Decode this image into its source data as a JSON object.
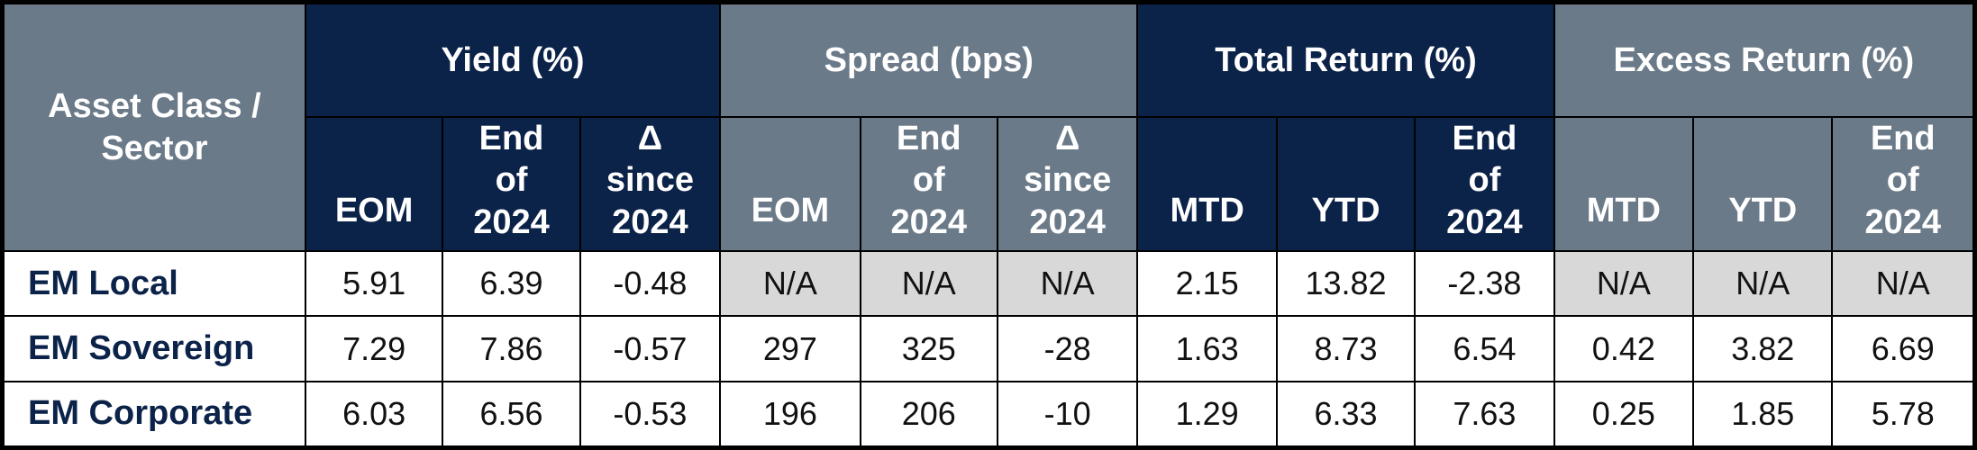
{
  "table": {
    "corner_header": "Asset Class / Sector",
    "groups": [
      {
        "label": "Yield (%)",
        "bg": "#0b2249",
        "subcolumns": [
          "EOM",
          "End of 2024",
          "Δ since 2024"
        ]
      },
      {
        "label": "Spread (bps)",
        "bg": "#6b7a89",
        "subcolumns": [
          "EOM",
          "End of 2024",
          "Δ since 2024"
        ]
      },
      {
        "label": "Total Return (%)",
        "bg": "#0b2249",
        "subcolumns": [
          "MTD",
          "YTD",
          "End of 2024"
        ]
      },
      {
        "label": "Excess Return (%)",
        "bg": "#6b7a89",
        "subcolumns": [
          "MTD",
          "YTD",
          "End of 2024"
        ]
      }
    ],
    "rows": [
      {
        "label": "EM Local",
        "cells": [
          "5.91",
          "6.39",
          "-0.48",
          "N/A",
          "N/A",
          "N/A",
          "2.15",
          "13.82",
          "-2.38",
          "N/A",
          "N/A",
          "N/A"
        ]
      },
      {
        "label": "EM Sovereign",
        "cells": [
          "7.29",
          "7.86",
          "-0.57",
          "297",
          "325",
          "-28",
          "1.63",
          "8.73",
          "6.54",
          "0.42",
          "3.82",
          "6.69"
        ]
      },
      {
        "label": "EM Corporate",
        "cells": [
          "6.03",
          "6.56",
          "-0.53",
          "196",
          "206",
          "-10",
          "1.29",
          "6.33",
          "7.63",
          "0.25",
          "1.85",
          "5.78"
        ]
      }
    ],
    "colors": {
      "navy_header": "#0b2249",
      "gray_header": "#6b7a89",
      "na_cell": "#d8d8d8",
      "row_label_text": "#0b2249"
    }
  }
}
